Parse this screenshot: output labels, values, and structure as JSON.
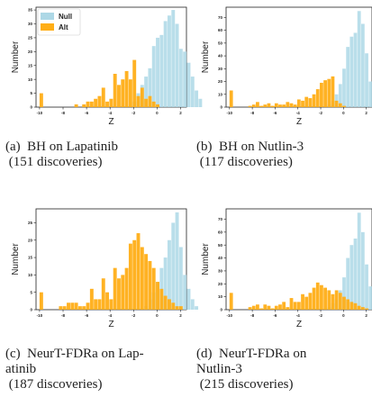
{
  "colors": {
    "null": "#ADD8E6",
    "alt": "#FFAE17",
    "axis": "#222222"
  },
  "chart_data": [
    {
      "type": "bar",
      "caption": "(a)  BH on Lapatinib\n (151 discoveries)",
      "xlabel": "Z",
      "ylabel": "Number",
      "xlim": [
        -10.3,
        2.5
      ],
      "ylim": [
        0,
        36
      ],
      "xticks": [
        "-10",
        "-8",
        "-6",
        "-4",
        "-2",
        "0",
        "2"
      ],
      "yticks": [
        "0",
        "5",
        "10",
        "15",
        "20",
        "25",
        "30",
        "35"
      ],
      "legend": {
        "position": "top-left",
        "entries": [
          "Null",
          "Alt"
        ]
      },
      "bin_start": -10,
      "bin_width": 0.33,
      "series": [
        {
          "name": "Null",
          "values": [
            0,
            0,
            0,
            0,
            0,
            0,
            0,
            0,
            0,
            0,
            0,
            0,
            0,
            0,
            0,
            0,
            0,
            0,
            0,
            0,
            0,
            0,
            0,
            0,
            2,
            5,
            8,
            11,
            14,
            22,
            25,
            26,
            31,
            33,
            35,
            30,
            21,
            20,
            16,
            11,
            6,
            3
          ]
        },
        {
          "name": "Alt",
          "values": [
            5,
            0,
            0,
            0,
            0,
            0,
            0,
            0,
            0,
            1,
            0,
            1,
            2,
            2,
            3,
            4,
            7,
            2,
            3,
            12,
            8,
            10,
            13,
            10,
            17,
            4,
            7,
            3,
            4,
            2,
            1,
            0,
            0,
            0,
            0,
            0,
            0,
            0,
            0,
            0,
            0,
            0
          ]
        }
      ]
    },
    {
      "type": "bar",
      "caption": "(b)  BH on Nutlin-3\n (117 discoveries)",
      "xlabel": "Z",
      "ylabel": "Number",
      "xlim": [
        -10.3,
        2.5
      ],
      "ylim": [
        0,
        78
      ],
      "xticks": [
        "-10",
        "-8",
        "-6",
        "-4",
        "-2",
        "0",
        "2"
      ],
      "yticks": [
        "0",
        "10",
        "20",
        "30",
        "40",
        "50",
        "60",
        "70"
      ],
      "bin_start": -10,
      "bin_width": 0.33,
      "series": [
        {
          "name": "Null",
          "values": [
            0,
            0,
            0,
            0,
            0,
            0,
            0,
            0,
            0,
            0,
            0,
            0,
            0,
            0,
            0,
            0,
            0,
            0,
            0,
            0,
            0,
            0,
            0,
            0,
            0,
            0,
            2,
            5,
            10,
            18,
            30,
            47,
            55,
            58,
            75,
            65,
            42,
            20,
            10,
            4,
            2,
            1
          ]
        },
        {
          "name": "Alt",
          "values": [
            13,
            0,
            0,
            0,
            0,
            1,
            2,
            4,
            1,
            2,
            3,
            1,
            3,
            2,
            2,
            4,
            3,
            2,
            6,
            5,
            8,
            7,
            10,
            14,
            19,
            21,
            22,
            24,
            5,
            3,
            1,
            0,
            0,
            0,
            0,
            0,
            0,
            0,
            0,
            0,
            0,
            0
          ]
        }
      ]
    },
    {
      "type": "bar",
      "caption": "(c)  NeurT-FDRa on Lap-\natinib\n (187 discoveries)",
      "xlabel": "Z",
      "ylabel": "Number",
      "xlim": [
        -10.3,
        2.5
      ],
      "ylim": [
        0,
        29
      ],
      "xticks": [
        "-10",
        "-8",
        "-6",
        "-4",
        "-2",
        "0",
        "2"
      ],
      "yticks": [
        "0",
        "5",
        "10",
        "15",
        "20",
        "25"
      ],
      "bin_start": -10,
      "bin_width": 0.33,
      "series": [
        {
          "name": "Null",
          "values": [
            0,
            0,
            0,
            0,
            0,
            0,
            0,
            0,
            0,
            0,
            0,
            0,
            0,
            0,
            0,
            0,
            0,
            0,
            0,
            0,
            0,
            0,
            0,
            0,
            0,
            0,
            0,
            1,
            3,
            5,
            8,
            12,
            15,
            20,
            25,
            28,
            18,
            10,
            6,
            3,
            1,
            0
          ]
        },
        {
          "name": "Alt",
          "values": [
            5,
            0,
            0,
            0,
            0,
            1,
            1,
            2,
            2,
            2,
            1,
            1,
            2,
            6,
            3,
            3,
            9,
            5,
            3,
            12,
            9,
            10,
            12,
            19,
            20,
            22,
            18,
            16,
            14,
            12,
            8,
            6,
            4,
            3,
            2,
            1,
            1,
            0,
            0,
            0,
            0,
            0
          ]
        }
      ]
    },
    {
      "type": "bar",
      "caption": "(d)  NeurT-FDRa on\nNutlin-3\n (215 discoveries)",
      "xlabel": "Z",
      "ylabel": "Number",
      "xlim": [
        -10.3,
        2.5
      ],
      "ylim": [
        0,
        78
      ],
      "xticks": [
        "-10",
        "-8",
        "-6",
        "-4",
        "-2",
        "0",
        "2"
      ],
      "yticks": [
        "0",
        "10",
        "20",
        "30",
        "40",
        "50",
        "60",
        "70"
      ],
      "bin_start": -10,
      "bin_width": 0.33,
      "series": [
        {
          "name": "Null",
          "values": [
            0,
            0,
            0,
            0,
            0,
            0,
            0,
            0,
            0,
            0,
            0,
            0,
            0,
            0,
            0,
            0,
            0,
            0,
            0,
            0,
            0,
            0,
            0,
            0,
            0,
            0,
            2,
            5,
            8,
            15,
            25,
            40,
            50,
            55,
            75,
            60,
            35,
            18,
            8,
            3,
            1,
            0
          ]
        },
        {
          "name": "Alt",
          "values": [
            13,
            0,
            0,
            0,
            0,
            2,
            3,
            4,
            1,
            4,
            3,
            1,
            3,
            4,
            6,
            2,
            9,
            6,
            6,
            12,
            10,
            13,
            17,
            21,
            19,
            17,
            15,
            12,
            15,
            13,
            10,
            8,
            6,
            5,
            3,
            2,
            1,
            0,
            0,
            0,
            0,
            0
          ]
        }
      ]
    }
  ]
}
